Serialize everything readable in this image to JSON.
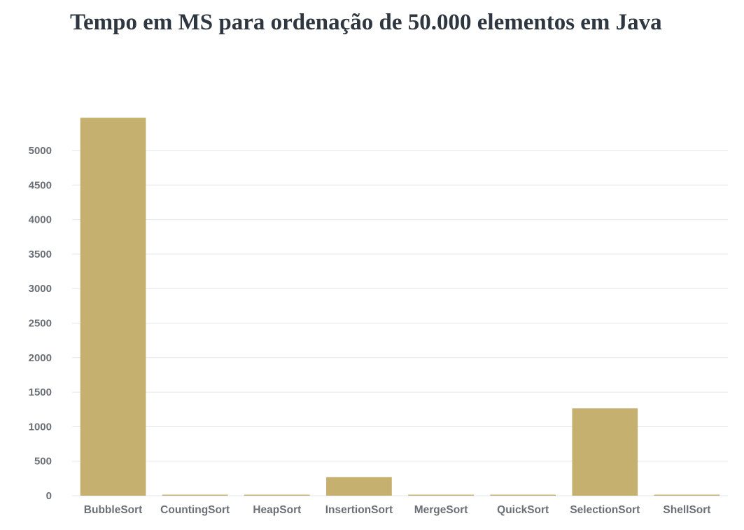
{
  "chart_data": {
    "type": "bar",
    "title": "Tempo em MS para ordenação de 50.000 elementos em Java",
    "xlabel": "",
    "ylabel": "",
    "categories": [
      "BubbleSort",
      "CountingSort",
      "HeapSort",
      "InsertionSort",
      "MergeSort",
      "QuickSort",
      "SelectionSort",
      "ShellSort"
    ],
    "values": [
      5475,
      3,
      14,
      270,
      14,
      11,
      1265,
      9
    ],
    "ylim": [
      0,
      5500
    ],
    "yticks": [
      "0",
      "500",
      "1000",
      "1500",
      "2000",
      "2500",
      "3000",
      "3500",
      "4000",
      "4500",
      "5000"
    ],
    "grid": true,
    "legend": "none",
    "colors": {
      "bar": "#c5b06f",
      "grid": "#e3e6ea",
      "text": "#6b6f76"
    }
  }
}
